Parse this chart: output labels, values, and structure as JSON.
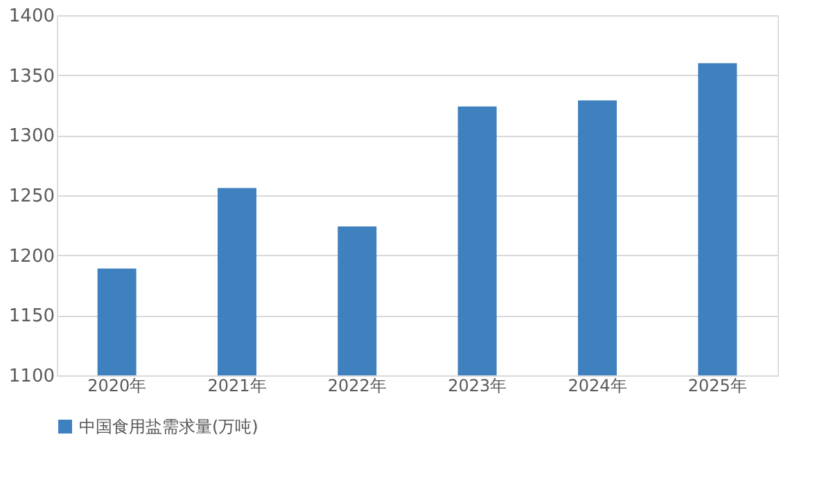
{
  "chart_data": {
    "type": "bar",
    "categories": [
      "2020年",
      "2021年",
      "2022年",
      "2023年",
      "2024年",
      "2025年"
    ],
    "series": [
      {
        "name": "中国食用盐需求量(万吨)",
        "color": "#3f80bf",
        "values": [
          1189,
          1256,
          1224,
          1324,
          1329,
          1360
        ]
      }
    ],
    "ylim": [
      1100,
      1400
    ],
    "yticks": [
      1100,
      1150,
      1200,
      1250,
      1300,
      1350,
      1400
    ],
    "grid": "y",
    "legend": "bottom"
  }
}
